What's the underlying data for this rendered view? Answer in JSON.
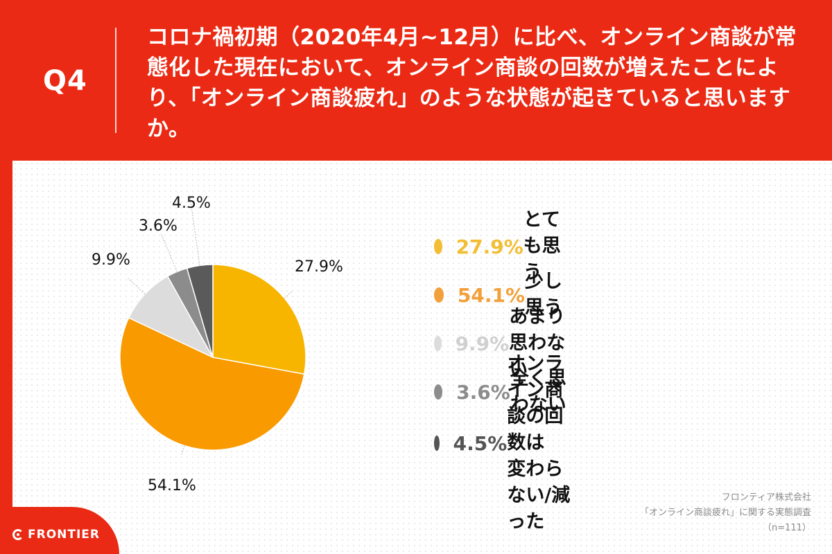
{
  "header": {
    "q_label": "Q4",
    "question": "コロナ禍初期（2020年4月~12月）に比べ、オンライン商談が常態化した現在において、オンライン商談の回数が増えたことにより、「オンライン商談疲れ」のような状態が起きていると思いますか。"
  },
  "chart_data": {
    "type": "pie",
    "title": "",
    "slices": [
      {
        "label": "とても思う",
        "value": 27.9,
        "display": "27.9%",
        "color": "#f7b500",
        "legend_color": "#f2be35"
      },
      {
        "label": "少し思う",
        "value": 54.1,
        "display": "54.1%",
        "color": "#f99a00",
        "legend_color": "#f2a03a"
      },
      {
        "label": "あまり思わない",
        "value": 9.9,
        "display": "9.9%",
        "color": "#dcdcdc",
        "legend_color": "#dcdcdc"
      },
      {
        "label": "全く思わない",
        "value": 3.6,
        "display": "3.6%",
        "color": "#8c8c8c",
        "legend_color": "#8c8c8c"
      },
      {
        "label": "オンライン商談の回数は\n変わらない/減った",
        "value": 4.5,
        "display": "4.5%",
        "color": "#5a5a5a",
        "legend_color": "#555555"
      }
    ],
    "start": "12 o'clock",
    "direction": "clockwise",
    "legend_position": "right"
  },
  "source": {
    "company": "フロンティア株式会社",
    "survey": "「オンライン商談疲れ」に関する実態調査",
    "n": "（n=111）"
  },
  "logo": {
    "text": "FRONTIER"
  }
}
